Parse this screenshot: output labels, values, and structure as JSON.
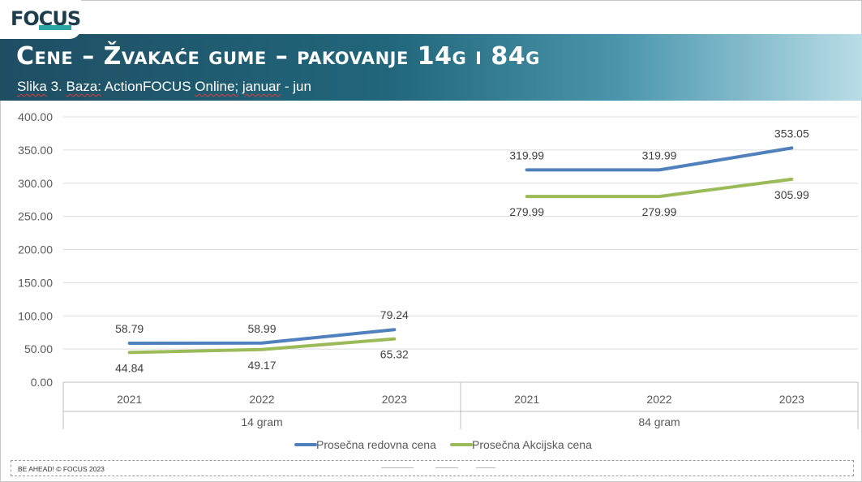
{
  "logo": {
    "text": "FOCUS"
  },
  "header": {
    "title": "Cene – Žvakaće gume – pakovanje 14g i 84g",
    "subtitle_parts": [
      "Slika",
      "3.",
      "Baza:",
      "ActionFOCUS",
      "Online;",
      "januar",
      "- jun"
    ]
  },
  "colors": {
    "banner_start": "#1f4e63",
    "banner_end": "#b9dde7",
    "series_regular": "#4f81bd",
    "series_promo": "#9bbb59"
  },
  "chart_data": {
    "type": "line",
    "title": "",
    "ylim": [
      0,
      400
    ],
    "yticks": [
      "0.00",
      "50.00",
      "100.00",
      "150.00",
      "200.00",
      "250.00",
      "300.00",
      "350.00",
      "400.00"
    ],
    "grid": true,
    "legend_position": "bottom",
    "groups": [
      {
        "label": "14 gram",
        "categories": [
          "2021",
          "2022",
          "2023"
        ]
      },
      {
        "label": "84 gram",
        "categories": [
          "2021",
          "2022",
          "2023"
        ]
      }
    ],
    "series": [
      {
        "name": "Prosečna redovna cena",
        "color": "#4f81bd",
        "groups": [
          {
            "values": [
              58.79,
              58.99,
              79.24
            ],
            "labels": [
              "58.79",
              "58.99",
              "79.24"
            ]
          },
          {
            "values": [
              319.99,
              319.99,
              353.05
            ],
            "labels": [
              "319.99",
              "319.99",
              "353.05"
            ]
          }
        ]
      },
      {
        "name": "Prosečna Akcijska cena",
        "color": "#9bbb59",
        "groups": [
          {
            "values": [
              44.84,
              49.17,
              65.32
            ],
            "labels": [
              "44.84",
              "49.17",
              "65.32"
            ]
          },
          {
            "values": [
              279.99,
              279.99,
              305.99
            ],
            "labels": [
              "279.99",
              "279.99",
              "305.99"
            ]
          }
        ]
      }
    ]
  },
  "footer": {
    "text": "BE AHEAD! © FOCUS 2023"
  }
}
